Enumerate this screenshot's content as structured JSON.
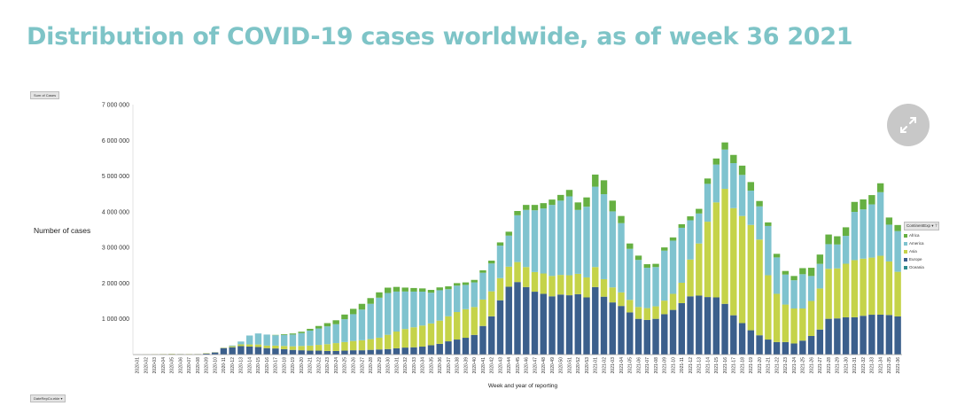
{
  "title": "Distribution of COVID-19 cases worldwide, as of week 36 2021",
  "pivot": {
    "sum_label": "Sum of Cases",
    "field_label": "DateRepCo.ekle ▾",
    "legend_header": "ContinentExp ▾ ⊤"
  },
  "icons": {
    "expand": "expand-arrows-icon"
  },
  "colors": {
    "Oceania": "#2e8b8d",
    "Europe": "#3b5f8c",
    "Asia": "#c5d349",
    "America": "#7fc3cf",
    "Africa": "#66b042"
  },
  "chart_data": {
    "type": "bar",
    "stacked": true,
    "title": "",
    "ylabel": "Number of cases",
    "xlabel": "Week and year of reporting",
    "ylim": [
      0,
      7000000
    ],
    "yticks": [
      0,
      1000000,
      2000000,
      3000000,
      4000000,
      5000000,
      6000000,
      7000000
    ],
    "ytick_labels": [
      "",
      "1 000 000",
      "2 000 000",
      "3 000 000",
      "4 000 000",
      "5 000 000",
      "6 000 000",
      "7 000 000"
    ],
    "grid": false,
    "legend": "right",
    "categories": [
      "2020-01",
      "2020-02",
      "2020-03",
      "2020-04",
      "2020-05",
      "2020-06",
      "2020-07",
      "2020-08",
      "2020-09",
      "2020-10",
      "2020-11",
      "2020-12",
      "2020-13",
      "2020-14",
      "2020-15",
      "2020-16",
      "2020-17",
      "2020-18",
      "2020-19",
      "2020-20",
      "2020-21",
      "2020-22",
      "2020-23",
      "2020-24",
      "2020-25",
      "2020-26",
      "2020-27",
      "2020-28",
      "2020-29",
      "2020-30",
      "2020-31",
      "2020-32",
      "2020-33",
      "2020-34",
      "2020-35",
      "2020-36",
      "2020-37",
      "2020-38",
      "2020-39",
      "2020-40",
      "2020-41",
      "2020-42",
      "2020-43",
      "2020-44",
      "2020-45",
      "2020-46",
      "2020-47",
      "2020-48",
      "2020-49",
      "2020-50",
      "2020-51",
      "2020-52",
      "2020-53",
      "2021-01",
      "2021-02",
      "2021-03",
      "2021-04",
      "2021-05",
      "2021-06",
      "2021-07",
      "2021-08",
      "2021-09",
      "2021-10",
      "2021-11",
      "2021-12",
      "2021-13",
      "2021-14",
      "2021-15",
      "2021-16",
      "2021-17",
      "2021-18",
      "2021-19",
      "2021-20",
      "2021-21",
      "2021-22",
      "2021-23",
      "2021-24",
      "2021-25",
      "2021-26",
      "2021-27",
      "2021-28",
      "2021-29",
      "2021-30",
      "2021-31",
      "2021-32",
      "2021-33",
      "2021-34",
      "2021-35",
      "2021-36"
    ],
    "series": [
      {
        "name": "Oceania",
        "values": [
          0,
          0,
          0,
          0,
          0,
          0,
          0,
          0,
          0,
          0,
          2000,
          5000,
          6000,
          4000,
          2000,
          1000,
          1000,
          1000,
          1000,
          1000,
          1000,
          1000,
          1000,
          1000,
          1000,
          1000,
          1000,
          2000,
          3000,
          4000,
          5000,
          6000,
          4000,
          3000,
          2000,
          1000,
          1000,
          1000,
          1000,
          1000,
          1000,
          1000,
          1000,
          1000,
          1000,
          1000,
          1000,
          1000,
          1000,
          1000,
          1000,
          1000,
          1000,
          1000,
          1000,
          1000,
          1000,
          1000,
          1000,
          1000,
          1000,
          1000,
          1000,
          1000,
          1000,
          1000,
          1000,
          1000,
          1000,
          1000,
          1000,
          1000,
          1000,
          1000,
          1000,
          1000,
          1000,
          1000,
          1000,
          1000,
          2000,
          3000,
          4000,
          5000,
          6000,
          6000,
          7000,
          8000,
          8000
        ]
      },
      {
        "name": "Europe",
        "values": [
          0,
          0,
          0,
          5000,
          10000,
          10000,
          5000,
          10000,
          30000,
          60000,
          180000,
          200000,
          230000,
          220000,
          210000,
          180000,
          170000,
          150000,
          130000,
          120000,
          110000,
          110000,
          100000,
          100000,
          110000,
          120000,
          120000,
          130000,
          140000,
          150000,
          170000,
          190000,
          200000,
          220000,
          260000,
          300000,
          370000,
          420000,
          470000,
          550000,
          800000,
          1070000,
          1520000,
          1900000,
          2030000,
          1890000,
          1760000,
          1700000,
          1630000,
          1680000,
          1660000,
          1690000,
          1600000,
          1890000,
          1620000,
          1460000,
          1360000,
          1180000,
          1000000,
          970000,
          1000000,
          1130000,
          1250000,
          1440000,
          1630000,
          1650000,
          1610000,
          1600000,
          1420000,
          1100000,
          880000,
          680000,
          540000,
          420000,
          350000,
          350000,
          310000,
          390000,
          520000,
          700000,
          1000000,
          1010000,
          1040000,
          1040000,
          1080000,
          1110000,
          1110000,
          1100000,
          1060000
        ]
      },
      {
        "name": "Asia",
        "values": [
          2000,
          5000,
          10000,
          10000,
          10000,
          5000,
          10000,
          5000,
          10000,
          5000,
          10000,
          30000,
          50000,
          60000,
          70000,
          70000,
          80000,
          90000,
          100000,
          120000,
          140000,
          160000,
          190000,
          220000,
          240000,
          260000,
          280000,
          300000,
          330000,
          400000,
          470000,
          520000,
          560000,
          590000,
          610000,
          650000,
          700000,
          770000,
          800000,
          780000,
          740000,
          700000,
          620000,
          560000,
          560000,
          560000,
          550000,
          570000,
          570000,
          550000,
          560000,
          570000,
          560000,
          560000,
          490000,
          420000,
          380000,
          350000,
          330000,
          330000,
          350000,
          380000,
          450000,
          570000,
          1030000,
          1460000,
          2110000,
          2660000,
          3220000,
          3000000,
          3000000,
          2950000,
          2680000,
          1800000,
          1350000,
          1050000,
          980000,
          900000,
          980000,
          1150000,
          1400000,
          1400000,
          1500000,
          1600000,
          1600000,
          1600000,
          1650000,
          1500000,
          1250000
        ]
      },
      {
        "name": "America",
        "values": [
          0,
          0,
          0,
          0,
          0,
          0,
          0,
          0,
          0,
          0,
          0,
          20000,
          80000,
          250000,
          310000,
          310000,
          290000,
          310000,
          330000,
          360000,
          420000,
          460000,
          500000,
          530000,
          640000,
          750000,
          860000,
          990000,
          1120000,
          1170000,
          1120000,
          1050000,
          1000000,
          950000,
          860000,
          850000,
          760000,
          740000,
          680000,
          690000,
          750000,
          780000,
          910000,
          870000,
          1310000,
          1600000,
          1730000,
          1820000,
          1990000,
          2080000,
          2210000,
          1790000,
          1980000,
          2250000,
          2380000,
          2130000,
          1940000,
          1430000,
          1320000,
          1130000,
          1100000,
          1400000,
          1490000,
          1540000,
          1100000,
          840000,
          1060000,
          1060000,
          1100000,
          1260000,
          1150000,
          960000,
          930000,
          1380000,
          1020000,
          840000,
          790000,
          960000,
          700000,
          690000,
          690000,
          670000,
          780000,
          1350000,
          1380000,
          1490000,
          1780000,
          1030000,
          1140000
        ]
      },
      {
        "name": "Africa",
        "values": [
          0,
          0,
          0,
          0,
          0,
          0,
          0,
          0,
          0,
          0,
          0,
          0,
          0,
          0,
          0,
          0,
          10000,
          20000,
          30000,
          40000,
          50000,
          70000,
          90000,
          110000,
          130000,
          150000,
          160000,
          160000,
          150000,
          150000,
          130000,
          110000,
          100000,
          90000,
          80000,
          80000,
          80000,
          70000,
          70000,
          70000,
          70000,
          80000,
          90000,
          110000,
          120000,
          140000,
          150000,
          150000,
          150000,
          160000,
          180000,
          210000,
          260000,
          340000,
          390000,
          300000,
          200000,
          150000,
          120000,
          100000,
          90000,
          90000,
          90000,
          100000,
          110000,
          130000,
          150000,
          170000,
          200000,
          230000,
          260000,
          240000,
          150000,
          100000,
          100000,
          100000,
          120000,
          170000,
          230000,
          260000,
          270000,
          230000,
          240000,
          280000,
          280000,
          260000,
          250000,
          200000,
          170000
        ]
      }
    ]
  }
}
